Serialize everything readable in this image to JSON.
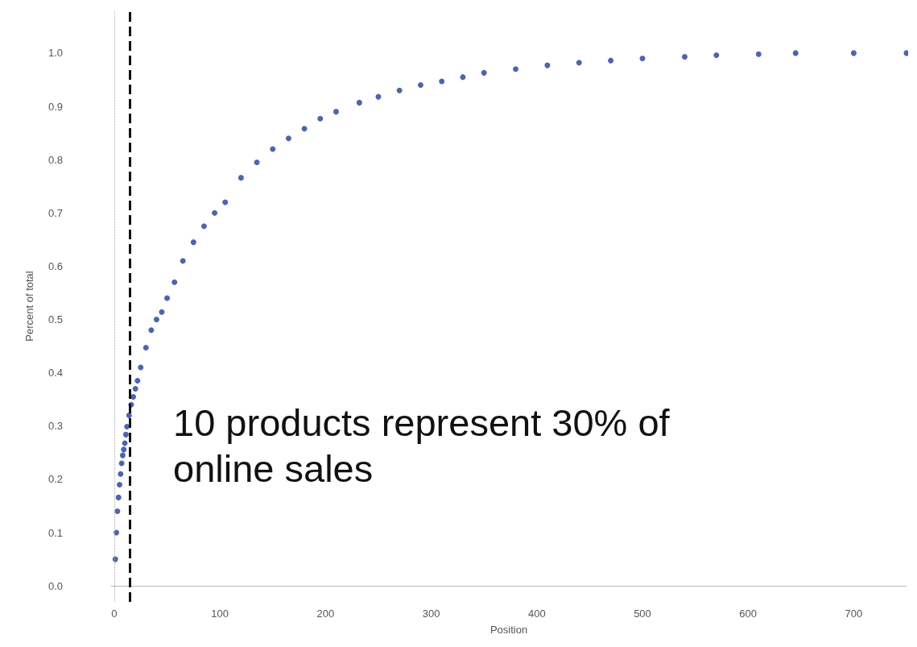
{
  "chart_data": {
    "type": "scatter",
    "xlabel": "Position",
    "ylabel": "Percent of total",
    "annotations": [
      "10 products represent 30% of online sales"
    ],
    "x": [
      1,
      2,
      3,
      4,
      5,
      6,
      7,
      8,
      9,
      10,
      11,
      12,
      14,
      16,
      18,
      20,
      22,
      25,
      30,
      35,
      40,
      45,
      50,
      57,
      65,
      75,
      85,
      95,
      105,
      120,
      135,
      150,
      165,
      180,
      195,
      210,
      232,
      250,
      270,
      290,
      310,
      330,
      350,
      380,
      410,
      440,
      470,
      500,
      540,
      570,
      610,
      645,
      700,
      750
    ],
    "series": [
      {
        "color": "#1f3f99",
        "values": [
          0.05,
          0.1,
          0.14,
          0.166,
          0.19,
          0.21,
          0.23,
          0.245,
          0.256,
          0.268,
          0.284,
          0.299,
          0.32,
          0.34,
          0.355,
          0.37,
          0.385,
          0.41,
          0.447,
          0.48,
          0.5,
          0.514,
          0.54,
          0.57,
          0.61,
          0.645,
          0.675,
          0.7,
          0.72,
          0.766,
          0.795,
          0.82,
          0.84,
          0.858,
          0.877,
          0.89,
          0.907,
          0.918,
          0.93,
          0.94,
          0.947,
          0.955,
          0.963,
          0.97,
          0.977,
          0.982,
          0.986,
          0.99,
          0.993,
          0.996,
          0.998,
          1.0,
          1.0,
          1.0
        ]
      }
    ],
    "xlim": [
      -3,
      750
    ],
    "ylim": [
      -0.03,
      1.08
    ],
    "xticks": [
      0,
      100,
      200,
      300,
      400,
      500,
      600,
      700
    ],
    "yticks": [
      {
        "value": 0,
        "label": "0.0"
      },
      0.1,
      0.2,
      0.3,
      0.4,
      0.5,
      0.6,
      0.7,
      0.8,
      0.9,
      {
        "value": 1,
        "label": "1.0"
      }
    ],
    "ref_lines": [
      {
        "axis": "x",
        "value": 15,
        "color": "#111111",
        "line_style": "dashed"
      },
      {
        "axis": "x",
        "value": 0,
        "color": "#aaaaaa",
        "line_style": "dotted"
      }
    ],
    "marker": "circle"
  }
}
